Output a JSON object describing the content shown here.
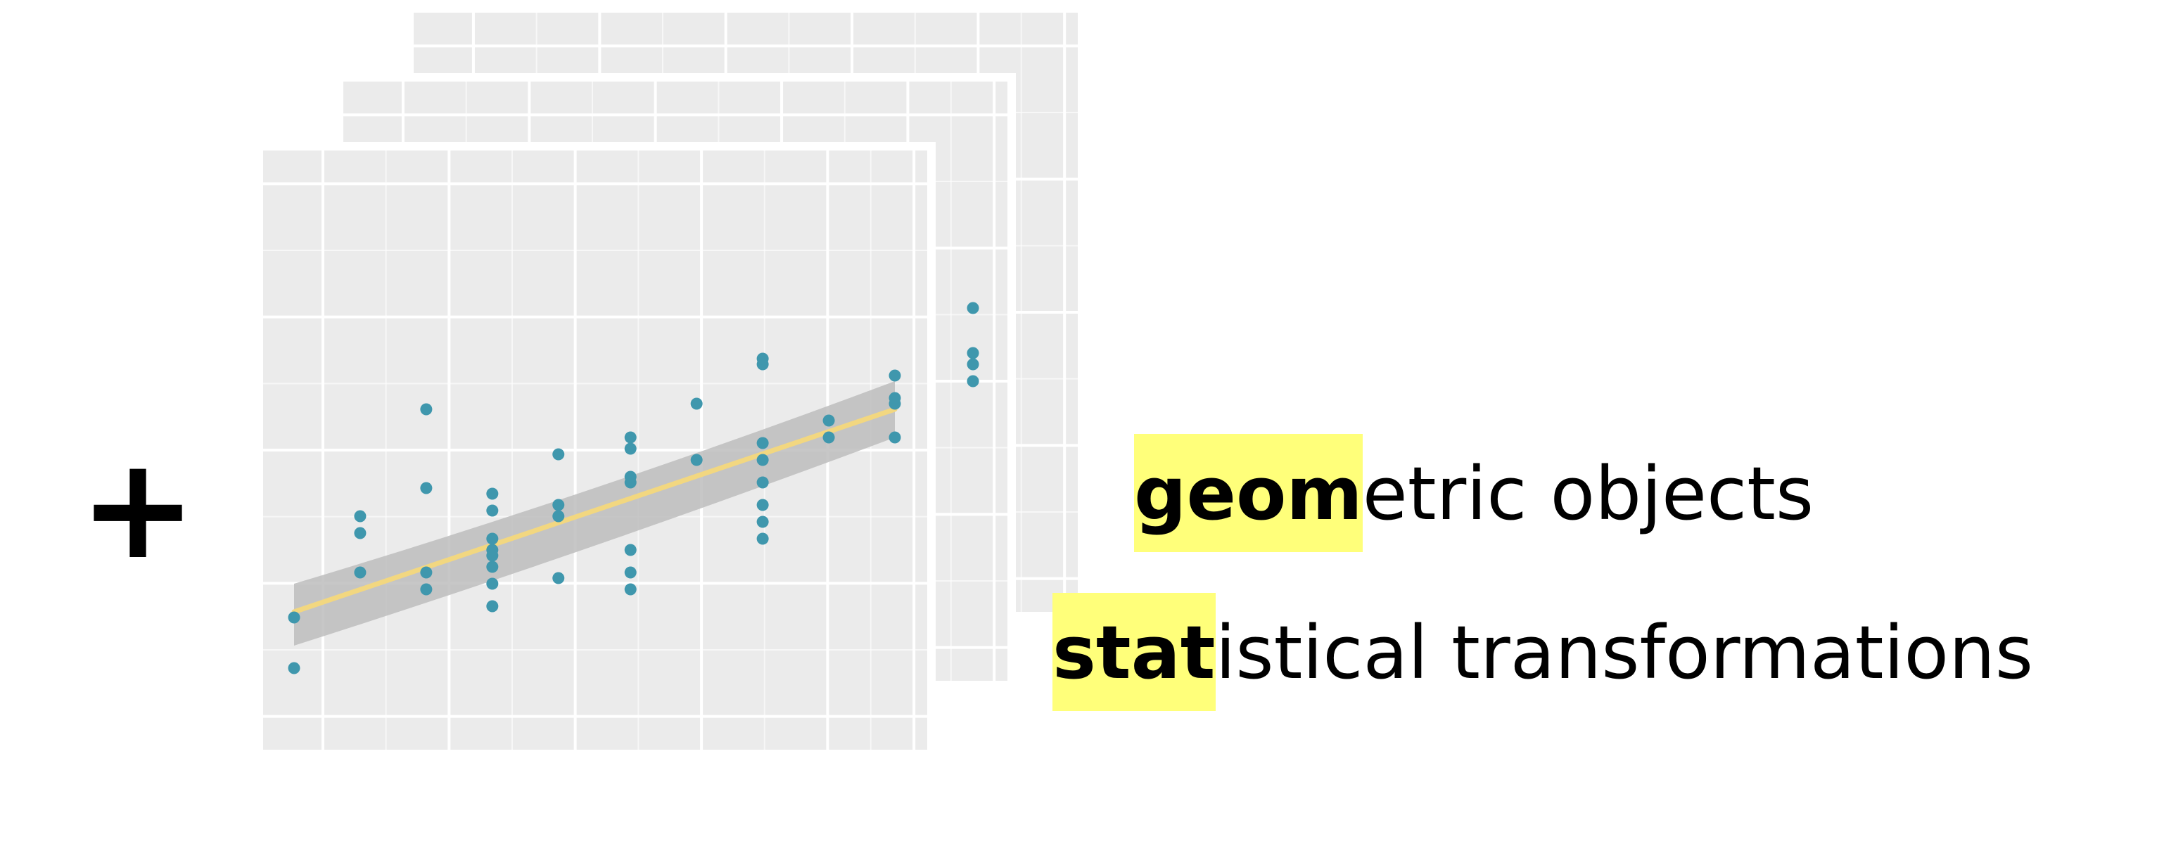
{
  "plus_symbol": "+",
  "captions": {
    "geom": {
      "highlight": "geom",
      "rest": "etric objects"
    },
    "stat": {
      "highlight": "stat",
      "rest": "istical transformations"
    }
  },
  "colors": {
    "panel_bg": "#ebebeb",
    "grid": "#ffffff",
    "point": "#3f97ad",
    "smooth_line": "#f2d780",
    "confidence_band": "#bdbdbd",
    "highlight": "#ffff7a"
  },
  "chart_data": {
    "type": "scatter",
    "xlim": [
      0,
      10
    ],
    "ylim": [
      0,
      10
    ],
    "points": [
      [
        0,
        0.9
      ],
      [
        0,
        1.8
      ],
      [
        1.1,
        2.6
      ],
      [
        1.1,
        3.3
      ],
      [
        1.1,
        3.6
      ],
      [
        2.2,
        2.3
      ],
      [
        2.2,
        2.6
      ],
      [
        2.2,
        4.1
      ],
      [
        2.2,
        5.5
      ],
      [
        3.3,
        2.0
      ],
      [
        3.3,
        2.4
      ],
      [
        3.3,
        2.7
      ],
      [
        3.3,
        2.9
      ],
      [
        3.3,
        3.0
      ],
      [
        3.3,
        3.2
      ],
      [
        3.3,
        3.7
      ],
      [
        3.3,
        4.0
      ],
      [
        4.4,
        2.5
      ],
      [
        4.4,
        3.6
      ],
      [
        4.4,
        3.8
      ],
      [
        4.4,
        4.7
      ],
      [
        5.6,
        2.3
      ],
      [
        5.6,
        2.6
      ],
      [
        5.6,
        3.0
      ],
      [
        5.6,
        4.2
      ],
      [
        5.6,
        4.3
      ],
      [
        5.6,
        4.8
      ],
      [
        5.6,
        5.0
      ],
      [
        6.7,
        4.6
      ],
      [
        6.7,
        5.6
      ],
      [
        7.8,
        3.2
      ],
      [
        7.8,
        3.5
      ],
      [
        7.8,
        3.8
      ],
      [
        7.8,
        4.2
      ],
      [
        7.8,
        4.6
      ],
      [
        7.8,
        4.9
      ],
      [
        7.8,
        6.3
      ],
      [
        7.8,
        6.4
      ],
      [
        8.9,
        5.0
      ],
      [
        8.9,
        5.3
      ],
      [
        10,
        5.0
      ],
      [
        10,
        5.6
      ],
      [
        10,
        5.7
      ],
      [
        10,
        6.1
      ]
    ],
    "smooth": {
      "x": [
        0,
        10
      ],
      "y": [
        1.9,
        5.5
      ]
    },
    "band": {
      "upper": [
        2.4,
        4.0,
        6.0
      ],
      "lower": [
        1.3,
        3.0,
        5.0
      ]
    },
    "back_panel_points": [
      [
        11.3,
        7.3
      ],
      [
        11.3,
        6.5
      ],
      [
        11.3,
        6.3
      ],
      [
        11.3,
        6.0
      ]
    ]
  }
}
